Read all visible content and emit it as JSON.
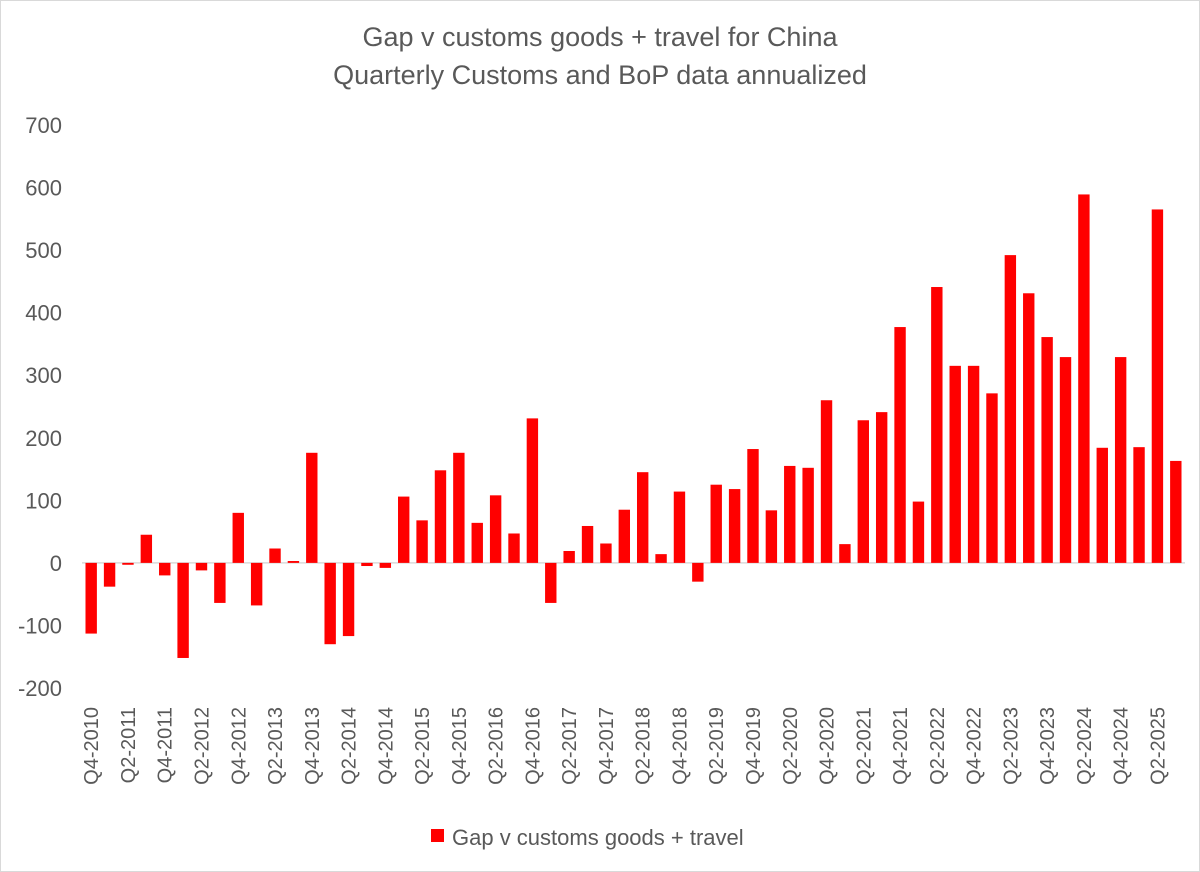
{
  "chart_data": {
    "type": "bar",
    "title": "Gap v customs goods + travel for China",
    "subtitle": "Quarterly Customs and BoP data annualized",
    "xlabel": "",
    "ylabel": "",
    "ylim": [
      -200,
      700
    ],
    "yticks": [
      700,
      600,
      500,
      400,
      300,
      200,
      100,
      0,
      -100,
      -200
    ],
    "bar_color": "#ff0000",
    "legend": {
      "position": "bottom",
      "label": "Gap v customs goods + travel"
    },
    "categories": [
      "Q4-2010",
      "Q1-2011",
      "Q2-2011",
      "Q3-2011",
      "Q4-2011",
      "Q1-2012",
      "Q2-2012",
      "Q3-2012",
      "Q4-2012",
      "Q1-2013",
      "Q2-2013",
      "Q3-2013",
      "Q4-2013",
      "Q1-2014",
      "Q2-2014",
      "Q3-2014",
      "Q4-2014",
      "Q1-2015",
      "Q2-2015",
      "Q3-2015",
      "Q4-2015",
      "Q1-2016",
      "Q2-2016",
      "Q3-2016",
      "Q4-2016",
      "Q1-2017",
      "Q2-2017",
      "Q3-2017",
      "Q4-2017",
      "Q1-2018",
      "Q2-2018",
      "Q3-2018",
      "Q4-2018",
      "Q1-2019",
      "Q2-2019",
      "Q3-2019",
      "Q4-2019",
      "Q1-2020",
      "Q2-2020",
      "Q3-2020",
      "Q4-2020",
      "Q1-2021",
      "Q2-2021",
      "Q3-2021",
      "Q4-2021",
      "Q1-2022",
      "Q2-2022",
      "Q3-2022",
      "Q4-2022",
      "Q1-2023",
      "Q2-2023",
      "Q3-2023",
      "Q4-2023",
      "Q1-2024",
      "Q2-2024",
      "Q3-2024",
      "Q4-2024",
      "Q1-2025",
      "Q2-2025",
      "Q3-2025"
    ],
    "xtick_labels": [
      "Q4-2010",
      "Q2-2011",
      "Q4-2011",
      "Q2-2012",
      "Q4-2012",
      "Q2-2013",
      "Q4-2013",
      "Q2-2014",
      "Q4-2014",
      "Q2-2015",
      "Q4-2015",
      "Q2-2016",
      "Q4-2016",
      "Q2-2017",
      "Q4-2017",
      "Q2-2018",
      "Q4-2018",
      "Q2-2019",
      "Q4-2019",
      "Q2-2020",
      "Q4-2020",
      "Q2-2021",
      "Q4-2021",
      "Q2-2022",
      "Q4-2022",
      "Q2-2023",
      "Q4-2023",
      "Q2-2024",
      "Q4-2024",
      "Q2-2025"
    ],
    "series": [
      {
        "name": "Gap v customs goods + travel",
        "values": [
          -113,
          -38,
          -3,
          45,
          -20,
          -152,
          -12,
          -64,
          80,
          -68,
          23,
          3,
          176,
          -130,
          -117,
          -5,
          -8,
          106,
          68,
          148,
          176,
          64,
          108,
          47,
          231,
          -64,
          19,
          59,
          31,
          85,
          145,
          14,
          114,
          -30,
          125,
          118,
          182,
          84,
          155,
          152,
          260,
          30,
          228,
          241,
          377,
          98,
          441,
          315,
          315,
          271,
          492,
          431,
          361,
          329,
          589,
          184,
          329,
          185,
          565,
          163
        ]
      }
    ]
  }
}
